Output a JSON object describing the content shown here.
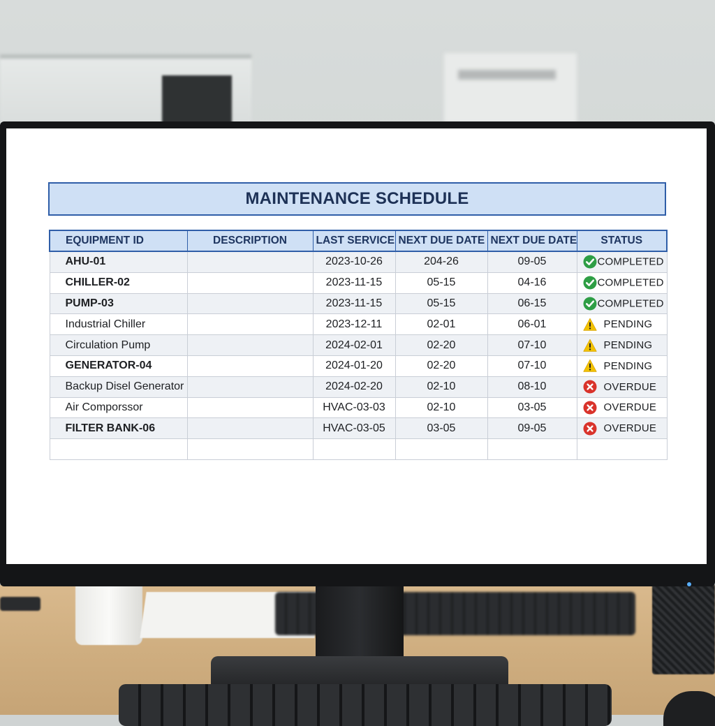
{
  "app": {
    "title": "MAINTENANCE SCHEDULE"
  },
  "table": {
    "headers": [
      "EQUIPMENT ID",
      "DESCRIPTION",
      "LAST SERVICE",
      "NEXT DUE DATE",
      "NEXT DUE DATE",
      "STATUS"
    ],
    "rows": [
      {
        "equipment_id": "AHU-01",
        "description": "",
        "last_service": "2023-10-26",
        "next_due_1": "204-26",
        "next_due_2": "09-05",
        "status": "COMPLETED",
        "status_icon": "check-icon"
      },
      {
        "equipment_id": "CHILLER-02",
        "description": "",
        "last_service": "2023-11-15",
        "next_due_1": "05-15",
        "next_due_2": "04-16",
        "status": "COMPLETED",
        "status_icon": "check-icon"
      },
      {
        "equipment_id": "PUMP-03",
        "description": "",
        "last_service": "2023-11-15",
        "next_due_1": "05-15",
        "next_due_2": "06-15",
        "status": "COMPLETED",
        "status_icon": "check-icon"
      },
      {
        "equipment_id": "Industrial Chiller",
        "description": "",
        "last_service": "2023-12-11",
        "next_due_1": "02-01",
        "next_due_2": "06-01",
        "status": "PENDING",
        "status_icon": "warning-icon"
      },
      {
        "equipment_id": "Circulation Pump",
        "description": "",
        "last_service": "2024-02-01",
        "next_due_1": "02-20",
        "next_due_2": "07-10",
        "status": "PENDING",
        "status_icon": "warning-icon"
      },
      {
        "equipment_id": "GENERATOR-04",
        "description": "",
        "last_service": "2024-01-20",
        "next_due_1": "02-20",
        "next_due_2": "07-10",
        "status": "PENDING",
        "status_icon": "warning-icon"
      },
      {
        "equipment_id": "Backup Disel Generator",
        "description": "",
        "last_service": "2024-02-20",
        "next_due_1": "02-10",
        "next_due_2": "08-10",
        "status": "OVERDUE",
        "status_icon": "error-icon"
      },
      {
        "equipment_id": "Air Comporssor",
        "description": "",
        "last_service": "HVAC-03-03",
        "next_due_1": "02-10",
        "next_due_2": "03-05",
        "status": "OVERDUE",
        "status_icon": "error-icon"
      },
      {
        "equipment_id": "FILTER BANK-06",
        "description": "",
        "last_service": "HVAC-03-05",
        "next_due_1": "03-05",
        "next_due_2": "09-05",
        "status": "OVERDUE",
        "status_icon": "error-icon"
      },
      {
        "equipment_id": "",
        "description": "",
        "last_service": "",
        "next_due_1": "",
        "next_due_2": "",
        "status": "",
        "status_icon": ""
      }
    ]
  },
  "colors": {
    "header_fill": "#cfe0f5",
    "header_border": "#2f5ea8",
    "completed": "#2e9e45",
    "pending": "#f2c200",
    "overdue": "#d9332b"
  }
}
